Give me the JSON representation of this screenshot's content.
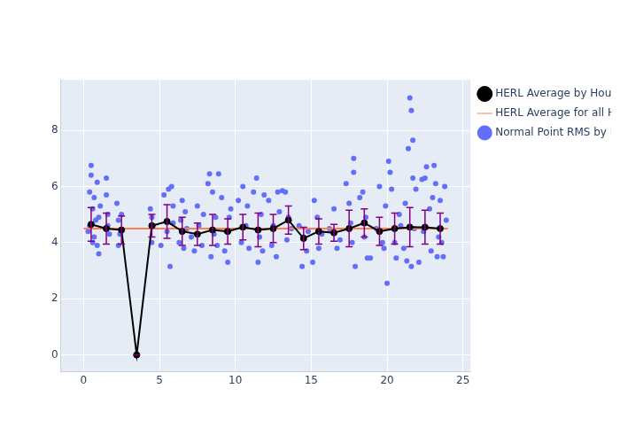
{
  "chart_data": {
    "type": "scatter",
    "xlim": [
      -1.5,
      25.5
    ],
    "xticks": [
      0,
      5,
      10,
      15,
      20,
      25
    ],
    "ylim": [
      -0.6,
      9.8
    ],
    "yticks": [
      0,
      2,
      4,
      6,
      8
    ],
    "grid": true,
    "legend": "right",
    "series": [
      {
        "name": "Normal Point RMS by Hour",
        "type": "scatter",
        "color": "#636efa",
        "marker": "circle",
        "x": [
          0.3,
          0.4,
          0.5,
          0.5,
          0.6,
          0.6,
          0.7,
          0.8,
          0.9,
          0.9,
          1.0,
          1.1,
          0.4,
          0.7,
          1.0,
          1.5,
          1.5,
          1.6,
          1.7,
          1.6,
          2.2,
          2.3,
          2.3,
          2.4,
          2.5,
          4.4,
          4.5,
          4.6,
          4.5,
          5.1,
          5.3,
          5.5,
          5.6,
          5.7,
          5.8,
          5.9,
          5.9,
          6.3,
          6.5,
          6.6,
          6.7,
          6.8,
          6.4,
          7.1,
          7.3,
          7.5,
          7.6,
          7.8,
          7.9,
          8.2,
          8.3,
          8.4,
          8.5,
          8.6,
          8.7,
          8.9,
          8.8,
          9.1,
          9.3,
          9.5,
          9.6,
          9.7,
          9.4,
          10.2,
          10.4,
          10.5,
          10.7,
          10.8,
          10.9,
          11.2,
          11.4,
          11.5,
          11.6,
          11.7,
          11.9,
          11.8,
          12.2,
          12.4,
          12.5,
          12.7,
          12.9,
          12.8,
          13.1,
          13.3,
          13.4,
          13.5,
          13.7,
          14.2,
          14.4,
          14.5,
          14.7,
          14.8,
          15.1,
          15.2,
          15.4,
          15.5,
          15.7,
          16.2,
          16.5,
          16.7,
          16.9,
          17.3,
          17.5,
          17.7,
          17.9,
          17.8,
          17.8,
          17.6,
          18.2,
          18.4,
          18.5,
          18.7,
          18.9,
          18.6,
          19.3,
          19.5,
          19.7,
          19.9,
          19.8,
          20.0,
          20.1,
          20.2,
          20.3,
          20.5,
          20.6,
          20.8,
          20.9,
          21.2,
          21.3,
          21.4,
          21.5,
          21.6,
          21.7,
          21.7,
          21.6,
          21.8,
          21.9,
          21.1,
          22.1,
          22.3,
          22.5,
          22.6,
          22.8,
          22.9,
          22.4,
          23.1,
          23.2,
          23.3,
          23.5,
          23.6,
          23.7,
          23.8,
          23.9,
          23.4,
          23.0
        ],
        "values": [
          4.4,
          5.8,
          6.4,
          6.75,
          5.2,
          4.0,
          5.6,
          4.8,
          6.15,
          3.9,
          3.6,
          5.3,
          4.6,
          4.2,
          4.9,
          6.3,
          5.7,
          5.0,
          4.3,
          4.6,
          5.4,
          4.8,
          3.9,
          4.3,
          5.0,
          5.2,
          4.0,
          4.6,
          4.9,
          3.9,
          5.7,
          4.4,
          5.9,
          3.15,
          6.0,
          4.7,
          5.3,
          4.0,
          5.5,
          3.8,
          5.1,
          4.5,
          4.8,
          4.2,
          3.7,
          5.3,
          4.6,
          3.9,
          5.0,
          6.1,
          6.45,
          3.5,
          5.8,
          4.3,
          4.9,
          6.45,
          3.9,
          5.6,
          3.7,
          3.3,
          4.9,
          5.2,
          4.4,
          5.5,
          4.0,
          6.0,
          4.6,
          5.3,
          3.8,
          5.8,
          6.3,
          3.3,
          4.2,
          5.0,
          5.7,
          3.7,
          5.5,
          3.9,
          4.6,
          3.5,
          5.1,
          5.8,
          5.85,
          5.8,
          4.1,
          4.9,
          4.5,
          4.6,
          3.15,
          4.2,
          3.7,
          4.4,
          3.3,
          5.5,
          4.9,
          3.8,
          4.3,
          4.5,
          5.2,
          3.8,
          4.1,
          6.1,
          5.4,
          4.0,
          3.15,
          7.0,
          6.5,
          4.7,
          5.6,
          5.8,
          4.2,
          3.45,
          3.45,
          4.9,
          4.5,
          6.0,
          4.0,
          5.3,
          3.8,
          2.55,
          6.9,
          6.5,
          5.9,
          4.0,
          3.45,
          5.0,
          4.6,
          5.4,
          3.35,
          7.35,
          9.15,
          8.7,
          7.65,
          6.3,
          3.15,
          4.5,
          5.9,
          3.8,
          3.3,
          6.25,
          6.3,
          6.7,
          5.2,
          3.7,
          4.4,
          6.75,
          6.1,
          3.5,
          5.5,
          4.0,
          3.5,
          6.0,
          4.8,
          4.2,
          5.6
        ]
      },
      {
        "name": "HERL Average by Hour",
        "type": "line",
        "color": "#000000",
        "marker": "circle",
        "x": [
          0.5,
          1.5,
          2.5,
          3.5,
          4.5,
          5.5,
          6.5,
          7.5,
          8.5,
          9.5,
          10.5,
          11.5,
          12.5,
          13.5,
          14.5,
          15.5,
          16.5,
          17.5,
          18.5,
          19.5,
          20.5,
          21.5,
          22.5,
          23.5
        ],
        "values": [
          4.65,
          4.5,
          4.45,
          0,
          4.6,
          4.75,
          4.4,
          4.3,
          4.45,
          4.4,
          4.55,
          4.45,
          4.5,
          4.8,
          4.15,
          4.4,
          4.35,
          4.5,
          4.7,
          4.4,
          4.5,
          4.55,
          4.55,
          4.5
        ],
        "error": [
          0.6,
          0.55,
          0.5,
          0,
          0.4,
          0.6,
          0.5,
          0.4,
          0.55,
          0.45,
          0.45,
          0.6,
          0.5,
          0.5,
          0.4,
          0.45,
          0.3,
          0.65,
          0.5,
          0.5,
          0.55,
          0.7,
          0.6,
          0.55
        ]
      },
      {
        "name": "HERL Average for all Hours",
        "type": "line",
        "color": "#ff7f50",
        "x": [
          0,
          24
        ],
        "values": [
          4.5,
          4.5
        ]
      }
    ]
  }
}
